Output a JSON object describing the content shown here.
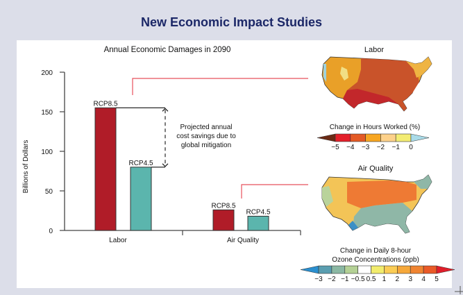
{
  "page": {
    "title": "New Economic Impact Studies"
  },
  "chart_data": {
    "type": "bar",
    "title": "Annual Economic Damages in 2090",
    "xlabel": "",
    "ylabel": "Billions of Dollars",
    "ylim": [
      0,
      200
    ],
    "yticks": [
      0,
      50,
      100,
      150,
      200
    ],
    "categories": [
      "Labor",
      "Air Quality"
    ],
    "series": [
      {
        "name": "RCP8.5",
        "color": "#b01c28",
        "values": [
          155,
          26
        ]
      },
      {
        "name": "RCP4.5",
        "color": "#5bb5ad",
        "values": [
          80,
          18
        ]
      }
    ],
    "annotation": {
      "lines": [
        "Projected annual",
        "cost savings due to",
        "global mitigation"
      ]
    },
    "connector_color": "#e8515c"
  },
  "maps": {
    "labor": {
      "title": "Labor",
      "legend_title": "Change in Hours Worked (%)",
      "legend_ticks": [
        "−5",
        "−4",
        "−3",
        "−2",
        "−1",
        "0"
      ],
      "legend_colors": [
        "#6b2a15",
        "#e3202a",
        "#e45a25",
        "#f7a621",
        "#fdd18a",
        "#f3ec73",
        "#a9dbe8"
      ]
    },
    "air_quality": {
      "title": "Air Quality",
      "legend_title_lines": [
        "Change in Daily 8-hour",
        "Ozone Concentrations (ppb)"
      ],
      "legend_ticks": [
        "−3",
        "−2",
        "−1",
        "−0.5",
        "0.5",
        "1",
        "2",
        "3",
        "4",
        "5"
      ],
      "legend_colors": [
        "#2a8fcf",
        "#5a9eb0",
        "#8bb8a3",
        "#b4d195",
        "#ffffff",
        "#f2ec6c",
        "#fbcd55",
        "#f6a83a",
        "#f08431",
        "#ea5a27",
        "#e01e2a"
      ]
    }
  }
}
